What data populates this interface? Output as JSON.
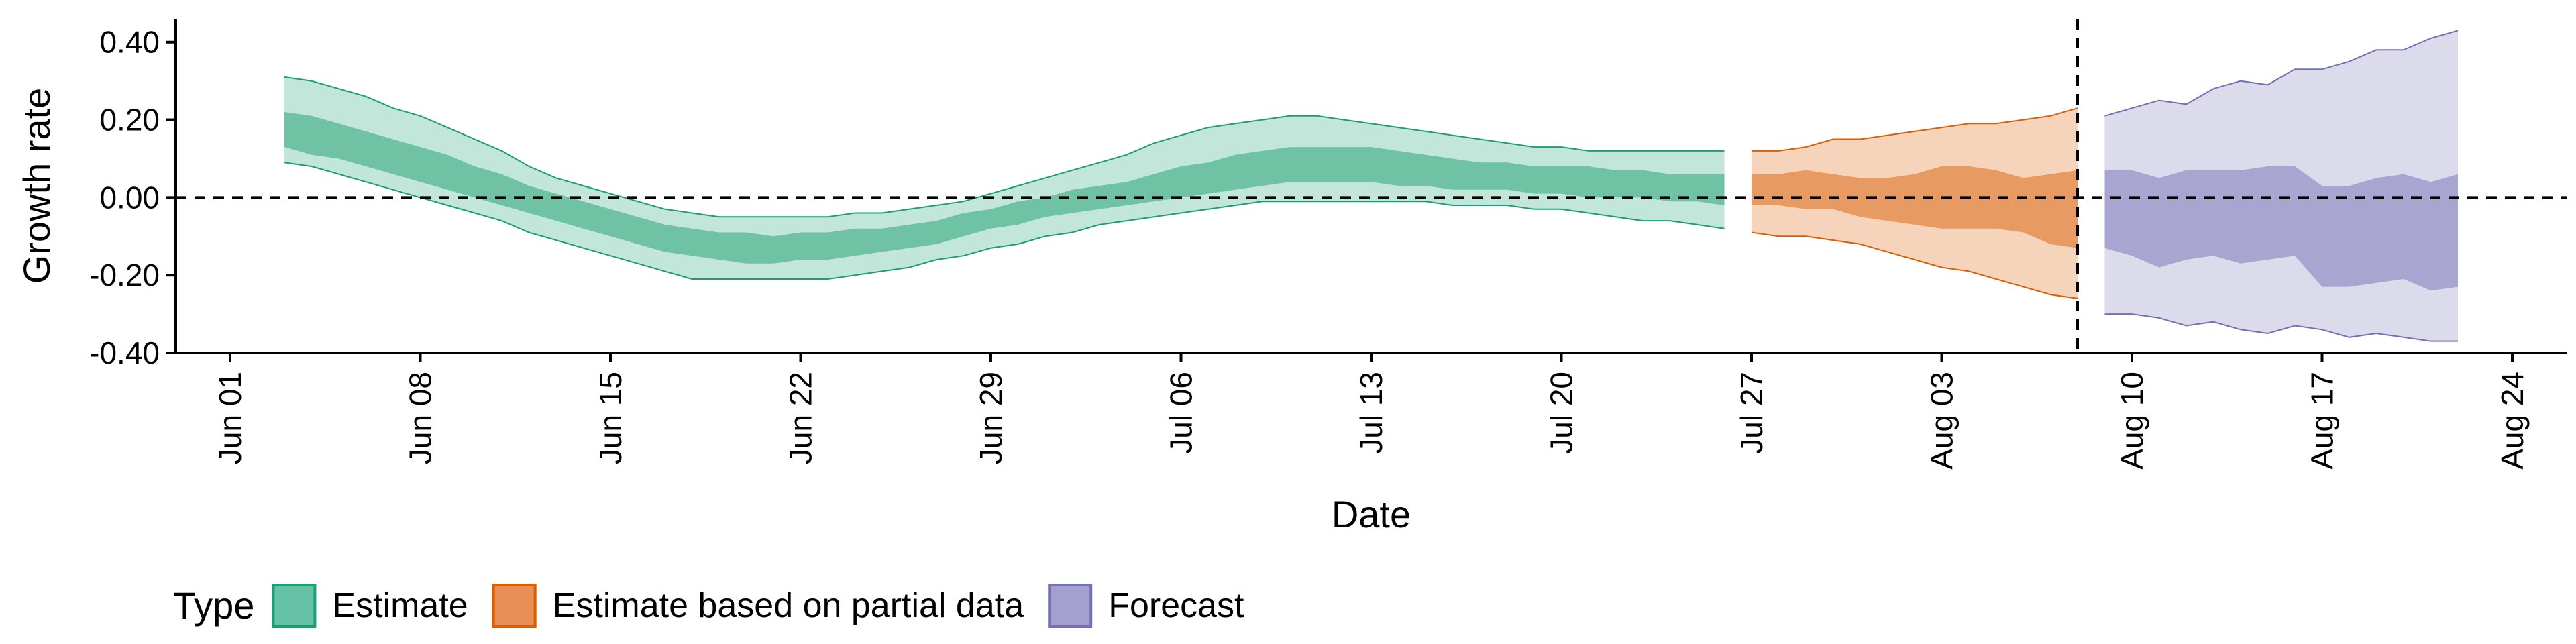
{
  "chart_data": {
    "type": "area",
    "xlabel": "Date",
    "ylabel": "Growth rate",
    "x_domain": [
      "2020-05-30",
      "2020-08-26"
    ],
    "ylim": [
      -0.4,
      0.46
    ],
    "x_ticks": [
      {
        "date": "2020-06-01",
        "label": "Jun 01"
      },
      {
        "date": "2020-06-08",
        "label": "Jun 08"
      },
      {
        "date": "2020-06-15",
        "label": "Jun 15"
      },
      {
        "date": "2020-06-22",
        "label": "Jun 22"
      },
      {
        "date": "2020-06-29",
        "label": "Jun 29"
      },
      {
        "date": "2020-07-06",
        "label": "Jul 06"
      },
      {
        "date": "2020-07-13",
        "label": "Jul 13"
      },
      {
        "date": "2020-07-20",
        "label": "Jul 20"
      },
      {
        "date": "2020-07-27",
        "label": "Jul 27"
      },
      {
        "date": "2020-08-03",
        "label": "Aug 03"
      },
      {
        "date": "2020-08-10",
        "label": "Aug 10"
      },
      {
        "date": "2020-08-17",
        "label": "Aug 17"
      },
      {
        "date": "2020-08-24",
        "label": "Aug 24"
      }
    ],
    "y_ticks": [
      {
        "value": 0.4,
        "label": "0.40"
      },
      {
        "value": 0.2,
        "label": "0.20"
      },
      {
        "value": 0.0,
        "label": "0.00"
      },
      {
        "value": -0.2,
        "label": "-0.20"
      },
      {
        "value": -0.4,
        "label": "-0.40"
      }
    ],
    "hline": 0,
    "vline": "2020-08-08",
    "legend": {
      "title": "Type",
      "position": "bottom-left",
      "items": [
        {
          "label": "Estimate",
          "fill": "#66c2a5",
          "stroke": "#1b9e77"
        },
        {
          "label": "Estimate based on partial data",
          "fill": "#e78f56",
          "stroke": "#d95f02"
        },
        {
          "label": "Forecast",
          "fill": "#a3a0d0",
          "stroke": "#7570b3"
        }
      ]
    },
    "series": [
      {
        "name": "Estimate",
        "outer_fill": "#c2e6da",
        "inner_fill": "#70c2a5",
        "line": "#1b9e77",
        "points": [
          {
            "x": "2020-06-03",
            "lo90": 0.09,
            "lo50": 0.13,
            "hi50": 0.22,
            "hi90": 0.31
          },
          {
            "x": "2020-06-04",
            "lo90": 0.08,
            "lo50": 0.11,
            "hi50": 0.21,
            "hi90": 0.3
          },
          {
            "x": "2020-06-05",
            "lo90": 0.06,
            "lo50": 0.1,
            "hi50": 0.19,
            "hi90": 0.28
          },
          {
            "x": "2020-06-06",
            "lo90": 0.04,
            "lo50": 0.08,
            "hi50": 0.17,
            "hi90": 0.26
          },
          {
            "x": "2020-06-07",
            "lo90": 0.02,
            "lo50": 0.06,
            "hi50": 0.15,
            "hi90": 0.23
          },
          {
            "x": "2020-06-08",
            "lo90": 0.0,
            "lo50": 0.04,
            "hi50": 0.13,
            "hi90": 0.21
          },
          {
            "x": "2020-06-09",
            "lo90": -0.02,
            "lo50": 0.02,
            "hi50": 0.11,
            "hi90": 0.18
          },
          {
            "x": "2020-06-10",
            "lo90": -0.04,
            "lo50": 0.0,
            "hi50": 0.08,
            "hi90": 0.15
          },
          {
            "x": "2020-06-11",
            "lo90": -0.06,
            "lo50": -0.02,
            "hi50": 0.06,
            "hi90": 0.12
          },
          {
            "x": "2020-06-12",
            "lo90": -0.09,
            "lo50": -0.04,
            "hi50": 0.03,
            "hi90": 0.08
          },
          {
            "x": "2020-06-13",
            "lo90": -0.11,
            "lo50": -0.06,
            "hi50": 0.01,
            "hi90": 0.05
          },
          {
            "x": "2020-06-14",
            "lo90": -0.13,
            "lo50": -0.08,
            "hi50": -0.01,
            "hi90": 0.03
          },
          {
            "x": "2020-06-15",
            "lo90": -0.15,
            "lo50": -0.1,
            "hi50": -0.03,
            "hi90": 0.01
          },
          {
            "x": "2020-06-16",
            "lo90": -0.17,
            "lo50": -0.12,
            "hi50": -0.05,
            "hi90": -0.01
          },
          {
            "x": "2020-06-17",
            "lo90": -0.19,
            "lo50": -0.14,
            "hi50": -0.07,
            "hi90": -0.03
          },
          {
            "x": "2020-06-18",
            "lo90": -0.21,
            "lo50": -0.15,
            "hi50": -0.08,
            "hi90": -0.04
          },
          {
            "x": "2020-06-19",
            "lo90": -0.21,
            "lo50": -0.16,
            "hi50": -0.09,
            "hi90": -0.05
          },
          {
            "x": "2020-06-20",
            "lo90": -0.21,
            "lo50": -0.17,
            "hi50": -0.09,
            "hi90": -0.05
          },
          {
            "x": "2020-06-21",
            "lo90": -0.21,
            "lo50": -0.17,
            "hi50": -0.1,
            "hi90": -0.05
          },
          {
            "x": "2020-06-22",
            "lo90": -0.21,
            "lo50": -0.16,
            "hi50": -0.09,
            "hi90": -0.05
          },
          {
            "x": "2020-06-23",
            "lo90": -0.21,
            "lo50": -0.16,
            "hi50": -0.09,
            "hi90": -0.05
          },
          {
            "x": "2020-06-24",
            "lo90": -0.2,
            "lo50": -0.15,
            "hi50": -0.08,
            "hi90": -0.04
          },
          {
            "x": "2020-06-25",
            "lo90": -0.19,
            "lo50": -0.14,
            "hi50": -0.08,
            "hi90": -0.04
          },
          {
            "x": "2020-06-26",
            "lo90": -0.18,
            "lo50": -0.13,
            "hi50": -0.07,
            "hi90": -0.03
          },
          {
            "x": "2020-06-27",
            "lo90": -0.16,
            "lo50": -0.12,
            "hi50": -0.06,
            "hi90": -0.02
          },
          {
            "x": "2020-06-28",
            "lo90": -0.15,
            "lo50": -0.1,
            "hi50": -0.04,
            "hi90": -0.01
          },
          {
            "x": "2020-06-29",
            "lo90": -0.13,
            "lo50": -0.08,
            "hi50": -0.03,
            "hi90": 0.01
          },
          {
            "x": "2020-06-30",
            "lo90": -0.12,
            "lo50": -0.07,
            "hi50": -0.01,
            "hi90": 0.03
          },
          {
            "x": "2020-07-01",
            "lo90": -0.1,
            "lo50": -0.05,
            "hi50": 0.0,
            "hi90": 0.05
          },
          {
            "x": "2020-07-02",
            "lo90": -0.09,
            "lo50": -0.04,
            "hi50": 0.02,
            "hi90": 0.07
          },
          {
            "x": "2020-07-03",
            "lo90": -0.07,
            "lo50": -0.03,
            "hi50": 0.03,
            "hi90": 0.09
          },
          {
            "x": "2020-07-04",
            "lo90": -0.06,
            "lo50": -0.02,
            "hi50": 0.04,
            "hi90": 0.11
          },
          {
            "x": "2020-07-05",
            "lo90": -0.05,
            "lo50": -0.01,
            "hi50": 0.06,
            "hi90": 0.14
          },
          {
            "x": "2020-07-06",
            "lo90": -0.04,
            "lo50": 0.0,
            "hi50": 0.08,
            "hi90": 0.16
          },
          {
            "x": "2020-07-07",
            "lo90": -0.03,
            "lo50": 0.01,
            "hi50": 0.09,
            "hi90": 0.18
          },
          {
            "x": "2020-07-08",
            "lo90": -0.02,
            "lo50": 0.02,
            "hi50": 0.11,
            "hi90": 0.19
          },
          {
            "x": "2020-07-09",
            "lo90": -0.01,
            "lo50": 0.03,
            "hi50": 0.12,
            "hi90": 0.2
          },
          {
            "x": "2020-07-10",
            "lo90": -0.01,
            "lo50": 0.04,
            "hi50": 0.13,
            "hi90": 0.21
          },
          {
            "x": "2020-07-11",
            "lo90": -0.01,
            "lo50": 0.04,
            "hi50": 0.13,
            "hi90": 0.21
          },
          {
            "x": "2020-07-12",
            "lo90": -0.01,
            "lo50": 0.04,
            "hi50": 0.13,
            "hi90": 0.2
          },
          {
            "x": "2020-07-13",
            "lo90": -0.01,
            "lo50": 0.04,
            "hi50": 0.13,
            "hi90": 0.19
          },
          {
            "x": "2020-07-14",
            "lo90": -0.01,
            "lo50": 0.03,
            "hi50": 0.12,
            "hi90": 0.18
          },
          {
            "x": "2020-07-15",
            "lo90": -0.01,
            "lo50": 0.03,
            "hi50": 0.11,
            "hi90": 0.17
          },
          {
            "x": "2020-07-16",
            "lo90": -0.02,
            "lo50": 0.02,
            "hi50": 0.1,
            "hi90": 0.16
          },
          {
            "x": "2020-07-17",
            "lo90": -0.02,
            "lo50": 0.02,
            "hi50": 0.09,
            "hi90": 0.15
          },
          {
            "x": "2020-07-18",
            "lo90": -0.02,
            "lo50": 0.02,
            "hi50": 0.09,
            "hi90": 0.14
          },
          {
            "x": "2020-07-19",
            "lo90": -0.03,
            "lo50": 0.01,
            "hi50": 0.08,
            "hi90": 0.13
          },
          {
            "x": "2020-07-20",
            "lo90": -0.03,
            "lo50": 0.01,
            "hi50": 0.08,
            "hi90": 0.13
          },
          {
            "x": "2020-07-21",
            "lo90": -0.04,
            "lo50": 0.0,
            "hi50": 0.08,
            "hi90": 0.12
          },
          {
            "x": "2020-07-22",
            "lo90": -0.05,
            "lo50": 0.0,
            "hi50": 0.07,
            "hi90": 0.12
          },
          {
            "x": "2020-07-23",
            "lo90": -0.06,
            "lo50": 0.0,
            "hi50": 0.07,
            "hi90": 0.12
          },
          {
            "x": "2020-07-24",
            "lo90": -0.06,
            "lo50": -0.01,
            "hi50": 0.06,
            "hi90": 0.12
          },
          {
            "x": "2020-07-25",
            "lo90": -0.07,
            "lo50": -0.01,
            "hi50": 0.06,
            "hi90": 0.12
          },
          {
            "x": "2020-07-26",
            "lo90": -0.08,
            "lo50": -0.02,
            "hi50": 0.06,
            "hi90": 0.12
          }
        ]
      },
      {
        "name": "Estimate based on partial data",
        "outer_fill": "#f6d3bb",
        "inner_fill": "#e89a63",
        "line": "#d95f02",
        "points": [
          {
            "x": "2020-07-27",
            "lo90": -0.09,
            "lo50": -0.02,
            "hi50": 0.06,
            "hi90": 0.12
          },
          {
            "x": "2020-07-28",
            "lo90": -0.1,
            "lo50": -0.02,
            "hi50": 0.06,
            "hi90": 0.12
          },
          {
            "x": "2020-07-29",
            "lo90": -0.1,
            "lo50": -0.03,
            "hi50": 0.07,
            "hi90": 0.13
          },
          {
            "x": "2020-07-30",
            "lo90": -0.11,
            "lo50": -0.03,
            "hi50": 0.06,
            "hi90": 0.15
          },
          {
            "x": "2020-07-31",
            "lo90": -0.12,
            "lo50": -0.05,
            "hi50": 0.05,
            "hi90": 0.15
          },
          {
            "x": "2020-08-01",
            "lo90": -0.14,
            "lo50": -0.06,
            "hi50": 0.05,
            "hi90": 0.16
          },
          {
            "x": "2020-08-02",
            "lo90": -0.16,
            "lo50": -0.07,
            "hi50": 0.06,
            "hi90": 0.17
          },
          {
            "x": "2020-08-03",
            "lo90": -0.18,
            "lo50": -0.08,
            "hi50": 0.08,
            "hi90": 0.18
          },
          {
            "x": "2020-08-04",
            "lo90": -0.19,
            "lo50": -0.08,
            "hi50": 0.08,
            "hi90": 0.19
          },
          {
            "x": "2020-08-05",
            "lo90": -0.21,
            "lo50": -0.08,
            "hi50": 0.07,
            "hi90": 0.19
          },
          {
            "x": "2020-08-06",
            "lo90": -0.23,
            "lo50": -0.09,
            "hi50": 0.05,
            "hi90": 0.2
          },
          {
            "x": "2020-08-07",
            "lo90": -0.25,
            "lo50": -0.12,
            "hi50": 0.06,
            "hi90": 0.21
          },
          {
            "x": "2020-08-08",
            "lo90": -0.26,
            "lo50": -0.13,
            "hi50": 0.07,
            "hi90": 0.23
          }
        ]
      },
      {
        "name": "Forecast",
        "outer_fill": "#dcdbec",
        "inner_fill": "#a8a5d1",
        "line": "#7570b3",
        "points": [
          {
            "x": "2020-08-09",
            "lo90": -0.3,
            "lo50": -0.13,
            "hi50": 0.07,
            "hi90": 0.21
          },
          {
            "x": "2020-08-10",
            "lo90": -0.3,
            "lo50": -0.15,
            "hi50": 0.07,
            "hi90": 0.23
          },
          {
            "x": "2020-08-11",
            "lo90": -0.31,
            "lo50": -0.18,
            "hi50": 0.05,
            "hi90": 0.25
          },
          {
            "x": "2020-08-12",
            "lo90": -0.33,
            "lo50": -0.16,
            "hi50": 0.07,
            "hi90": 0.24
          },
          {
            "x": "2020-08-13",
            "lo90": -0.32,
            "lo50": -0.15,
            "hi50": 0.07,
            "hi90": 0.28
          },
          {
            "x": "2020-08-14",
            "lo90": -0.34,
            "lo50": -0.17,
            "hi50": 0.07,
            "hi90": 0.3
          },
          {
            "x": "2020-08-15",
            "lo90": -0.35,
            "lo50": -0.16,
            "hi50": 0.08,
            "hi90": 0.29
          },
          {
            "x": "2020-08-16",
            "lo90": -0.33,
            "lo50": -0.15,
            "hi50": 0.08,
            "hi90": 0.33
          },
          {
            "x": "2020-08-17",
            "lo90": -0.34,
            "lo50": -0.23,
            "hi50": 0.03,
            "hi90": 0.33
          },
          {
            "x": "2020-08-18",
            "lo90": -0.36,
            "lo50": -0.23,
            "hi50": 0.03,
            "hi90": 0.35
          },
          {
            "x": "2020-08-19",
            "lo90": -0.35,
            "lo50": -0.22,
            "hi50": 0.05,
            "hi90": 0.38
          },
          {
            "x": "2020-08-20",
            "lo90": -0.36,
            "lo50": -0.21,
            "hi50": 0.06,
            "hi90": 0.38
          },
          {
            "x": "2020-08-21",
            "lo90": -0.37,
            "lo50": -0.24,
            "hi50": 0.04,
            "hi90": 0.41
          },
          {
            "x": "2020-08-22",
            "lo90": -0.37,
            "lo50": -0.23,
            "hi50": 0.06,
            "hi90": 0.43
          }
        ]
      }
    ]
  }
}
